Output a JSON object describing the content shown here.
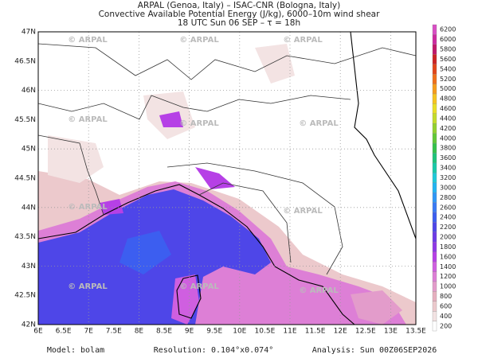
{
  "header": {
    "lines": [
      "ARPAL (Genoa, Italy)  –  ISAC-CNR (Bologna, Italy)",
      "Convective Available Potential Energy (J/kg), 6000–10m wind shear",
      "18 UTC Sun 06 SEP  –  τ = 18h"
    ]
  },
  "map": {
    "lat_labels": [
      "42N",
      "42.5N",
      "43N",
      "43.5N",
      "44N",
      "44.5N",
      "45N",
      "45.5N",
      "46N",
      "46.5N",
      "47N"
    ],
    "lon_labels": [
      "6E",
      "6.5E",
      "7E",
      "7.5E",
      "8E",
      "8.5E",
      "9E",
      "9.5E",
      "10E",
      "10.5E",
      "11E",
      "11.5E",
      "12E",
      "12.5E",
      "13E",
      "13.5E"
    ],
    "watermark": "© ARPAL"
  },
  "colorbar": {
    "ticks": [
      200,
      400,
      600,
      800,
      1000,
      1200,
      1400,
      1600,
      1800,
      2000,
      2200,
      2400,
      2600,
      2800,
      3000,
      3200,
      3400,
      3600,
      3800,
      4000,
      4200,
      4400,
      4600,
      4800,
      5000,
      5200,
      5400,
      5600,
      5800,
      6000,
      6200
    ],
    "colors": [
      "#ffffff",
      "#f3e3e3",
      "#ecc9cc",
      "#e6b0bf",
      "#e39ccb",
      "#dd7fd6",
      "#cf5fe0",
      "#b640e6",
      "#8f38e6",
      "#6d3be6",
      "#4e46e8",
      "#3c5ef0",
      "#3a7af5",
      "#2f97f7",
      "#22b4f2",
      "#1ec9d8",
      "#19c9a8",
      "#1ec47a",
      "#35c24b",
      "#62c837",
      "#93d12e",
      "#c4dc2a",
      "#eadf25",
      "#f6c41f",
      "#f69c1b",
      "#f0701a",
      "#e2461a",
      "#cd2424",
      "#c0186a",
      "#cc2aa0",
      "#d84fc4"
    ]
  },
  "footer": {
    "model": "Model: bolam",
    "resolution": "Resolution: 0.104°x0.074°",
    "analysis": "Analysis: Sun 00Z06SEP2026"
  }
}
